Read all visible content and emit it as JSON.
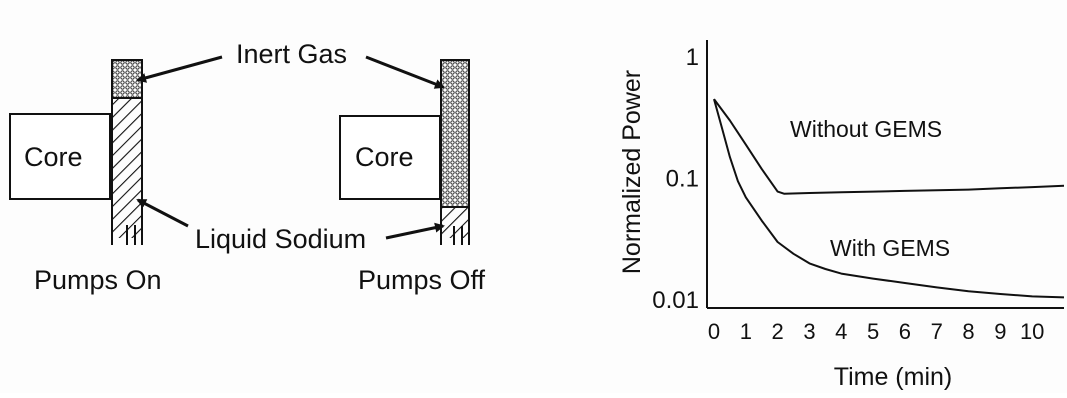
{
  "diagram": {
    "core_label_left": "Core",
    "core_label_right": "Core",
    "inert_gas_label": "Inert Gas",
    "liquid_sodium_label": "Liquid Sodium",
    "pumps_on_label": "Pumps On",
    "pumps_off_label": "Pumps Off"
  },
  "chart_data": {
    "type": "line",
    "ylabel": "Normalized Power",
    "xlabel": "Time (min)",
    "y_scale": "log",
    "ylim": [
      0.01,
      1
    ],
    "xlim": [
      0,
      11
    ],
    "x_ticks": [
      "0",
      "1",
      "2",
      "3",
      "4",
      "5",
      "6",
      "7",
      "8",
      "9",
      "10"
    ],
    "y_ticks": [
      "0.01",
      "0.1",
      "1"
    ],
    "grid": false,
    "annotations": [
      "Without GEMS",
      "With GEMS"
    ],
    "series": [
      {
        "name": "Without GEMS",
        "x": [
          0,
          0.5,
          1,
          1.5,
          2,
          2.2,
          3,
          4,
          5,
          6,
          7,
          8,
          9,
          10,
          11
        ],
        "y": [
          0.45,
          0.3,
          0.19,
          0.12,
          0.078,
          0.075,
          0.076,
          0.077,
          0.078,
          0.079,
          0.08,
          0.081,
          0.083,
          0.085,
          0.087
        ]
      },
      {
        "name": "With GEMS",
        "x": [
          0,
          0.25,
          0.5,
          0.75,
          1,
          1.5,
          2,
          2.5,
          3,
          3.5,
          4,
          5,
          6,
          7,
          8,
          9,
          10,
          11
        ],
        "y": [
          0.45,
          0.26,
          0.15,
          0.095,
          0.07,
          0.045,
          0.03,
          0.024,
          0.02,
          0.018,
          0.0165,
          0.015,
          0.0138,
          0.0127,
          0.0118,
          0.0112,
          0.0107,
          0.0105
        ]
      }
    ]
  }
}
